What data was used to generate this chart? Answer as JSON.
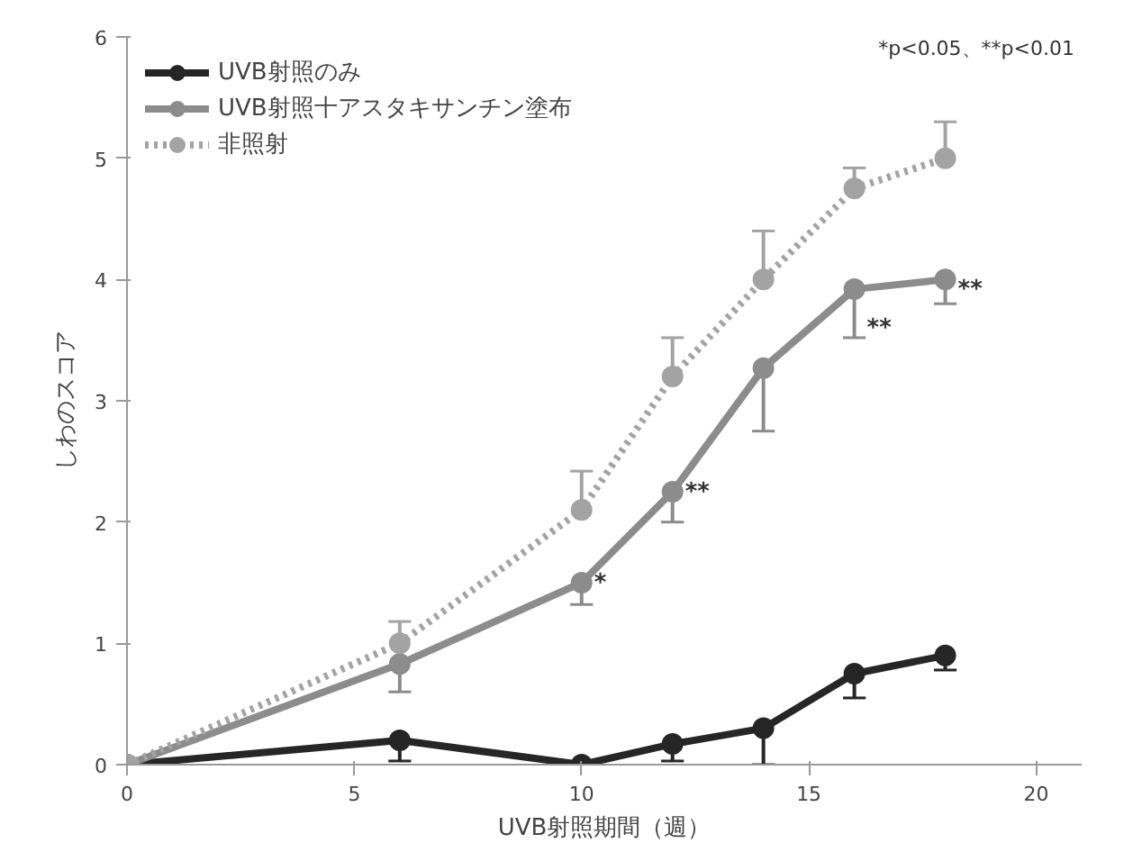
{
  "chart_data": {
    "type": "line",
    "xlabel": "UVB射照期間（週）",
    "ylabel": "しわのスコア",
    "x": [
      0,
      6,
      10,
      12,
      14,
      16,
      18
    ],
    "series": [
      {
        "name": "UVB射照のみ",
        "color": "#262626",
        "line_style": "solid",
        "values": [
          0,
          0.2,
          0.0,
          0.17,
          0.3,
          0.75,
          0.9
        ],
        "errors": [
          null,
          [
            0.03,
            0.2
          ],
          null,
          [
            0.03,
            0.17
          ],
          [
            0,
            0.3
          ],
          [
            0.55,
            0.75
          ],
          [
            0.78,
            0.9
          ]
        ]
      },
      {
        "name": "UVB射照十アスタキサンチン塗布",
        "color": "#8c8c8c",
        "line_style": "solid",
        "values": [
          0,
          0.83,
          1.5,
          2.25,
          3.27,
          3.92,
          4.0
        ],
        "errors": [
          null,
          [
            0.6,
            0.83
          ],
          [
            1.32,
            1.5
          ],
          [
            2.0,
            2.25
          ],
          [
            2.75,
            3.27
          ],
          [
            3.52,
            3.92
          ],
          [
            3.8,
            4.0
          ]
        ]
      },
      {
        "name": "非照射",
        "color": "#a3a3a3",
        "line_style": "dotted",
        "values": [
          0,
          1.0,
          2.1,
          3.2,
          4.0,
          4.75,
          5.0
        ],
        "errors": [
          null,
          [
            1.0,
            1.18
          ],
          [
            2.1,
            2.42
          ],
          [
            3.2,
            3.52
          ],
          [
            4.0,
            4.4
          ],
          [
            4.75,
            4.92
          ],
          [
            5.0,
            5.3
          ]
        ]
      }
    ],
    "annotations": [
      "*p<0.05、**p<0.01",
      {
        "text": "*",
        "x": 10,
        "y": 1.5
      },
      {
        "text": "**",
        "x": 12,
        "y": 2.25
      },
      {
        "text": "**",
        "x": 16,
        "y": 3.6
      },
      {
        "text": "**",
        "x": 18,
        "y": 3.92
      }
    ],
    "xlim": [
      0,
      21
    ],
    "ylim": [
      0,
      6
    ],
    "xticks": [
      0,
      5,
      10,
      15,
      20
    ],
    "yticks": [
      0,
      1,
      2,
      3,
      4,
      5,
      6
    ],
    "marker": "circle",
    "grid": false,
    "legend": "top left"
  }
}
